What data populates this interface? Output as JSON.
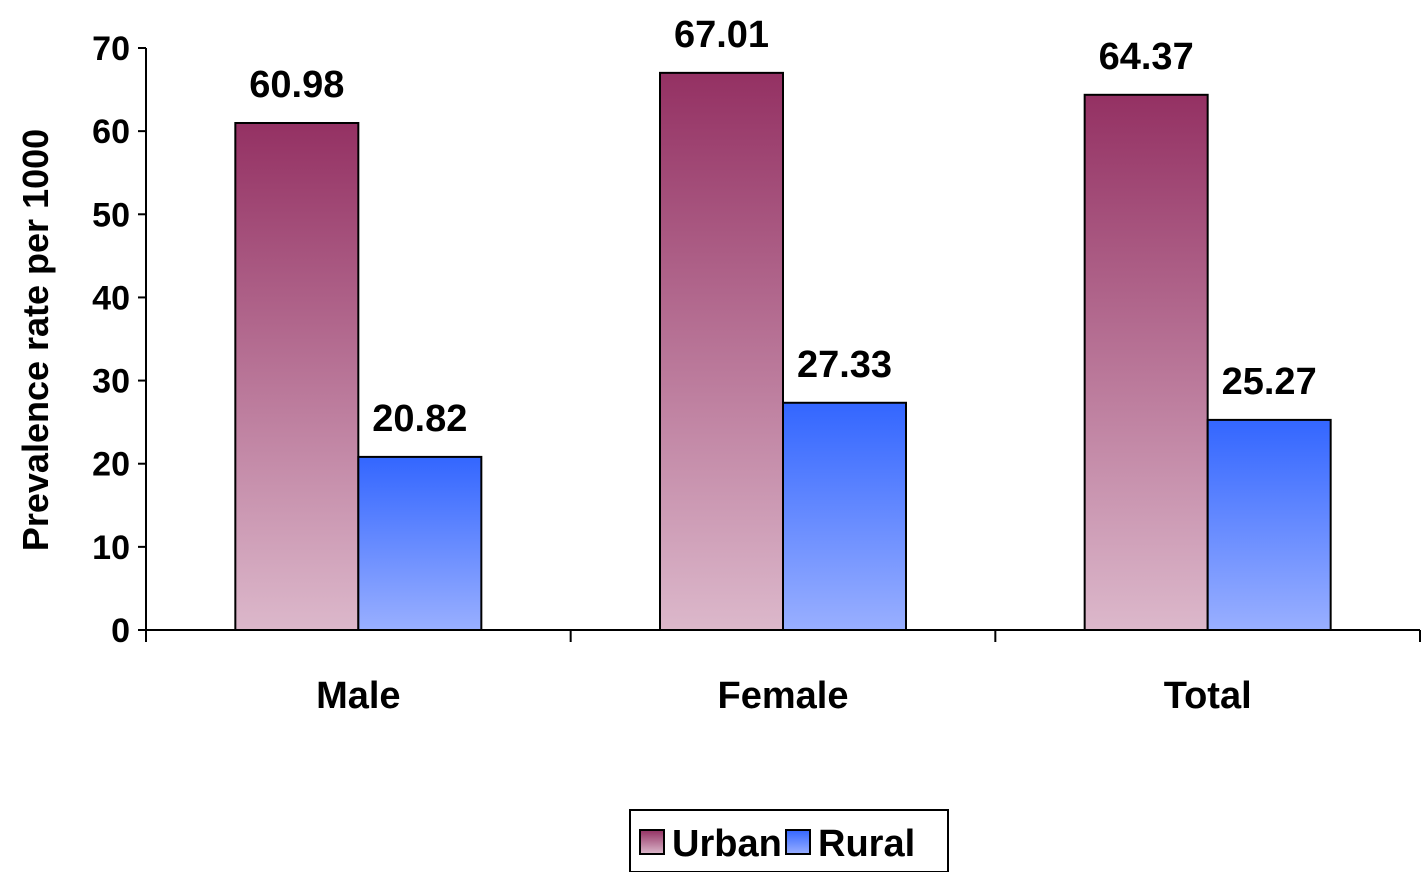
{
  "chart_data": {
    "type": "bar",
    "categories": [
      "Male",
      "Female",
      "Total"
    ],
    "series": [
      {
        "name": "Urban",
        "values": [
          60.98,
          67.01,
          64.37
        ],
        "color_top": "#943163",
        "color_bottom": "#DCB8CB"
      },
      {
        "name": "Rural",
        "values": [
          20.82,
          27.33,
          25.27
        ],
        "color_top": "#3366FF",
        "color_bottom": "#99AFFF"
      }
    ],
    "ylabel": "Prevalence rate per 1000",
    "xlabel": "",
    "ylim": [
      0,
      70
    ],
    "yticks": [
      0,
      10,
      20,
      30,
      40,
      50,
      60,
      70
    ],
    "grid": false,
    "legend": "bottom-center"
  }
}
